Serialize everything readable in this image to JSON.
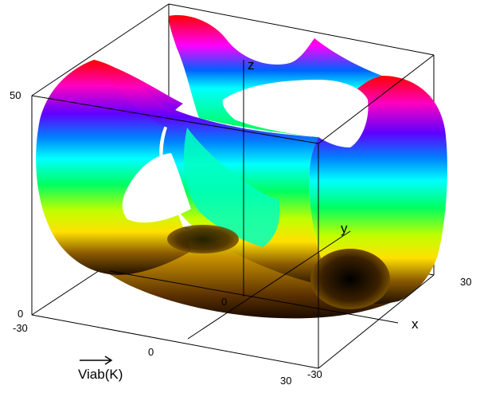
{
  "chart_data": {
    "type": "surface-3d",
    "caption": "Viab(K)",
    "axes": {
      "x": {
        "label": "x",
        "range": [
          -30,
          30
        ],
        "ticks": [
          "-30",
          "0",
          "30"
        ]
      },
      "y": {
        "label": "y",
        "range": [
          -30,
          30
        ],
        "ticks": [
          "-30",
          "30"
        ]
      },
      "z": {
        "label": "z",
        "range": [
          0,
          50
        ],
        "ticks": [
          "0",
          "50"
        ]
      },
      "origin_label": "0"
    },
    "colormap": [
      "#ff0000",
      "#ff00ff",
      "#0000ff",
      "#00ffff",
      "#00ff00",
      "#ffff00",
      "#a07000",
      "#000000"
    ],
    "grid": false,
    "box": true
  }
}
